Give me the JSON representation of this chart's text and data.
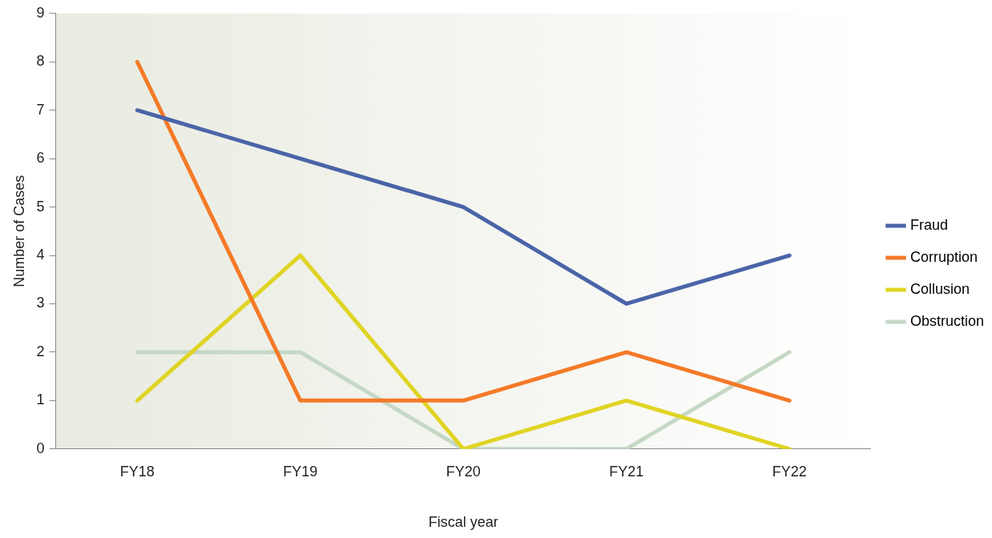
{
  "chart_data": {
    "type": "line",
    "xlabel": "Fiscal year",
    "ylabel": "Number of Cases",
    "categories": [
      "FY18",
      "FY19",
      "FY20",
      "FY21",
      "FY22"
    ],
    "series": [
      {
        "name": "Fraud",
        "color": "#4a64a8",
        "values": [
          7,
          6,
          5,
          3,
          4
        ]
      },
      {
        "name": "Corruption",
        "color": "#f47a28",
        "values": [
          8,
          1,
          1,
          2,
          1
        ]
      },
      {
        "name": "Collusion",
        "color": "#e0d424",
        "values": [
          1,
          4,
          0,
          1,
          0
        ]
      },
      {
        "name": "Obstruction",
        "color": "#c5d8c5",
        "values": [
          2,
          2,
          0,
          0,
          2
        ]
      }
    ],
    "ylim": [
      0,
      9
    ],
    "yticks": [
      0,
      1,
      2,
      3,
      4,
      5,
      6,
      7,
      8,
      9
    ],
    "grid": false,
    "legend": "right",
    "marker": "none",
    "line_style": "solid"
  }
}
